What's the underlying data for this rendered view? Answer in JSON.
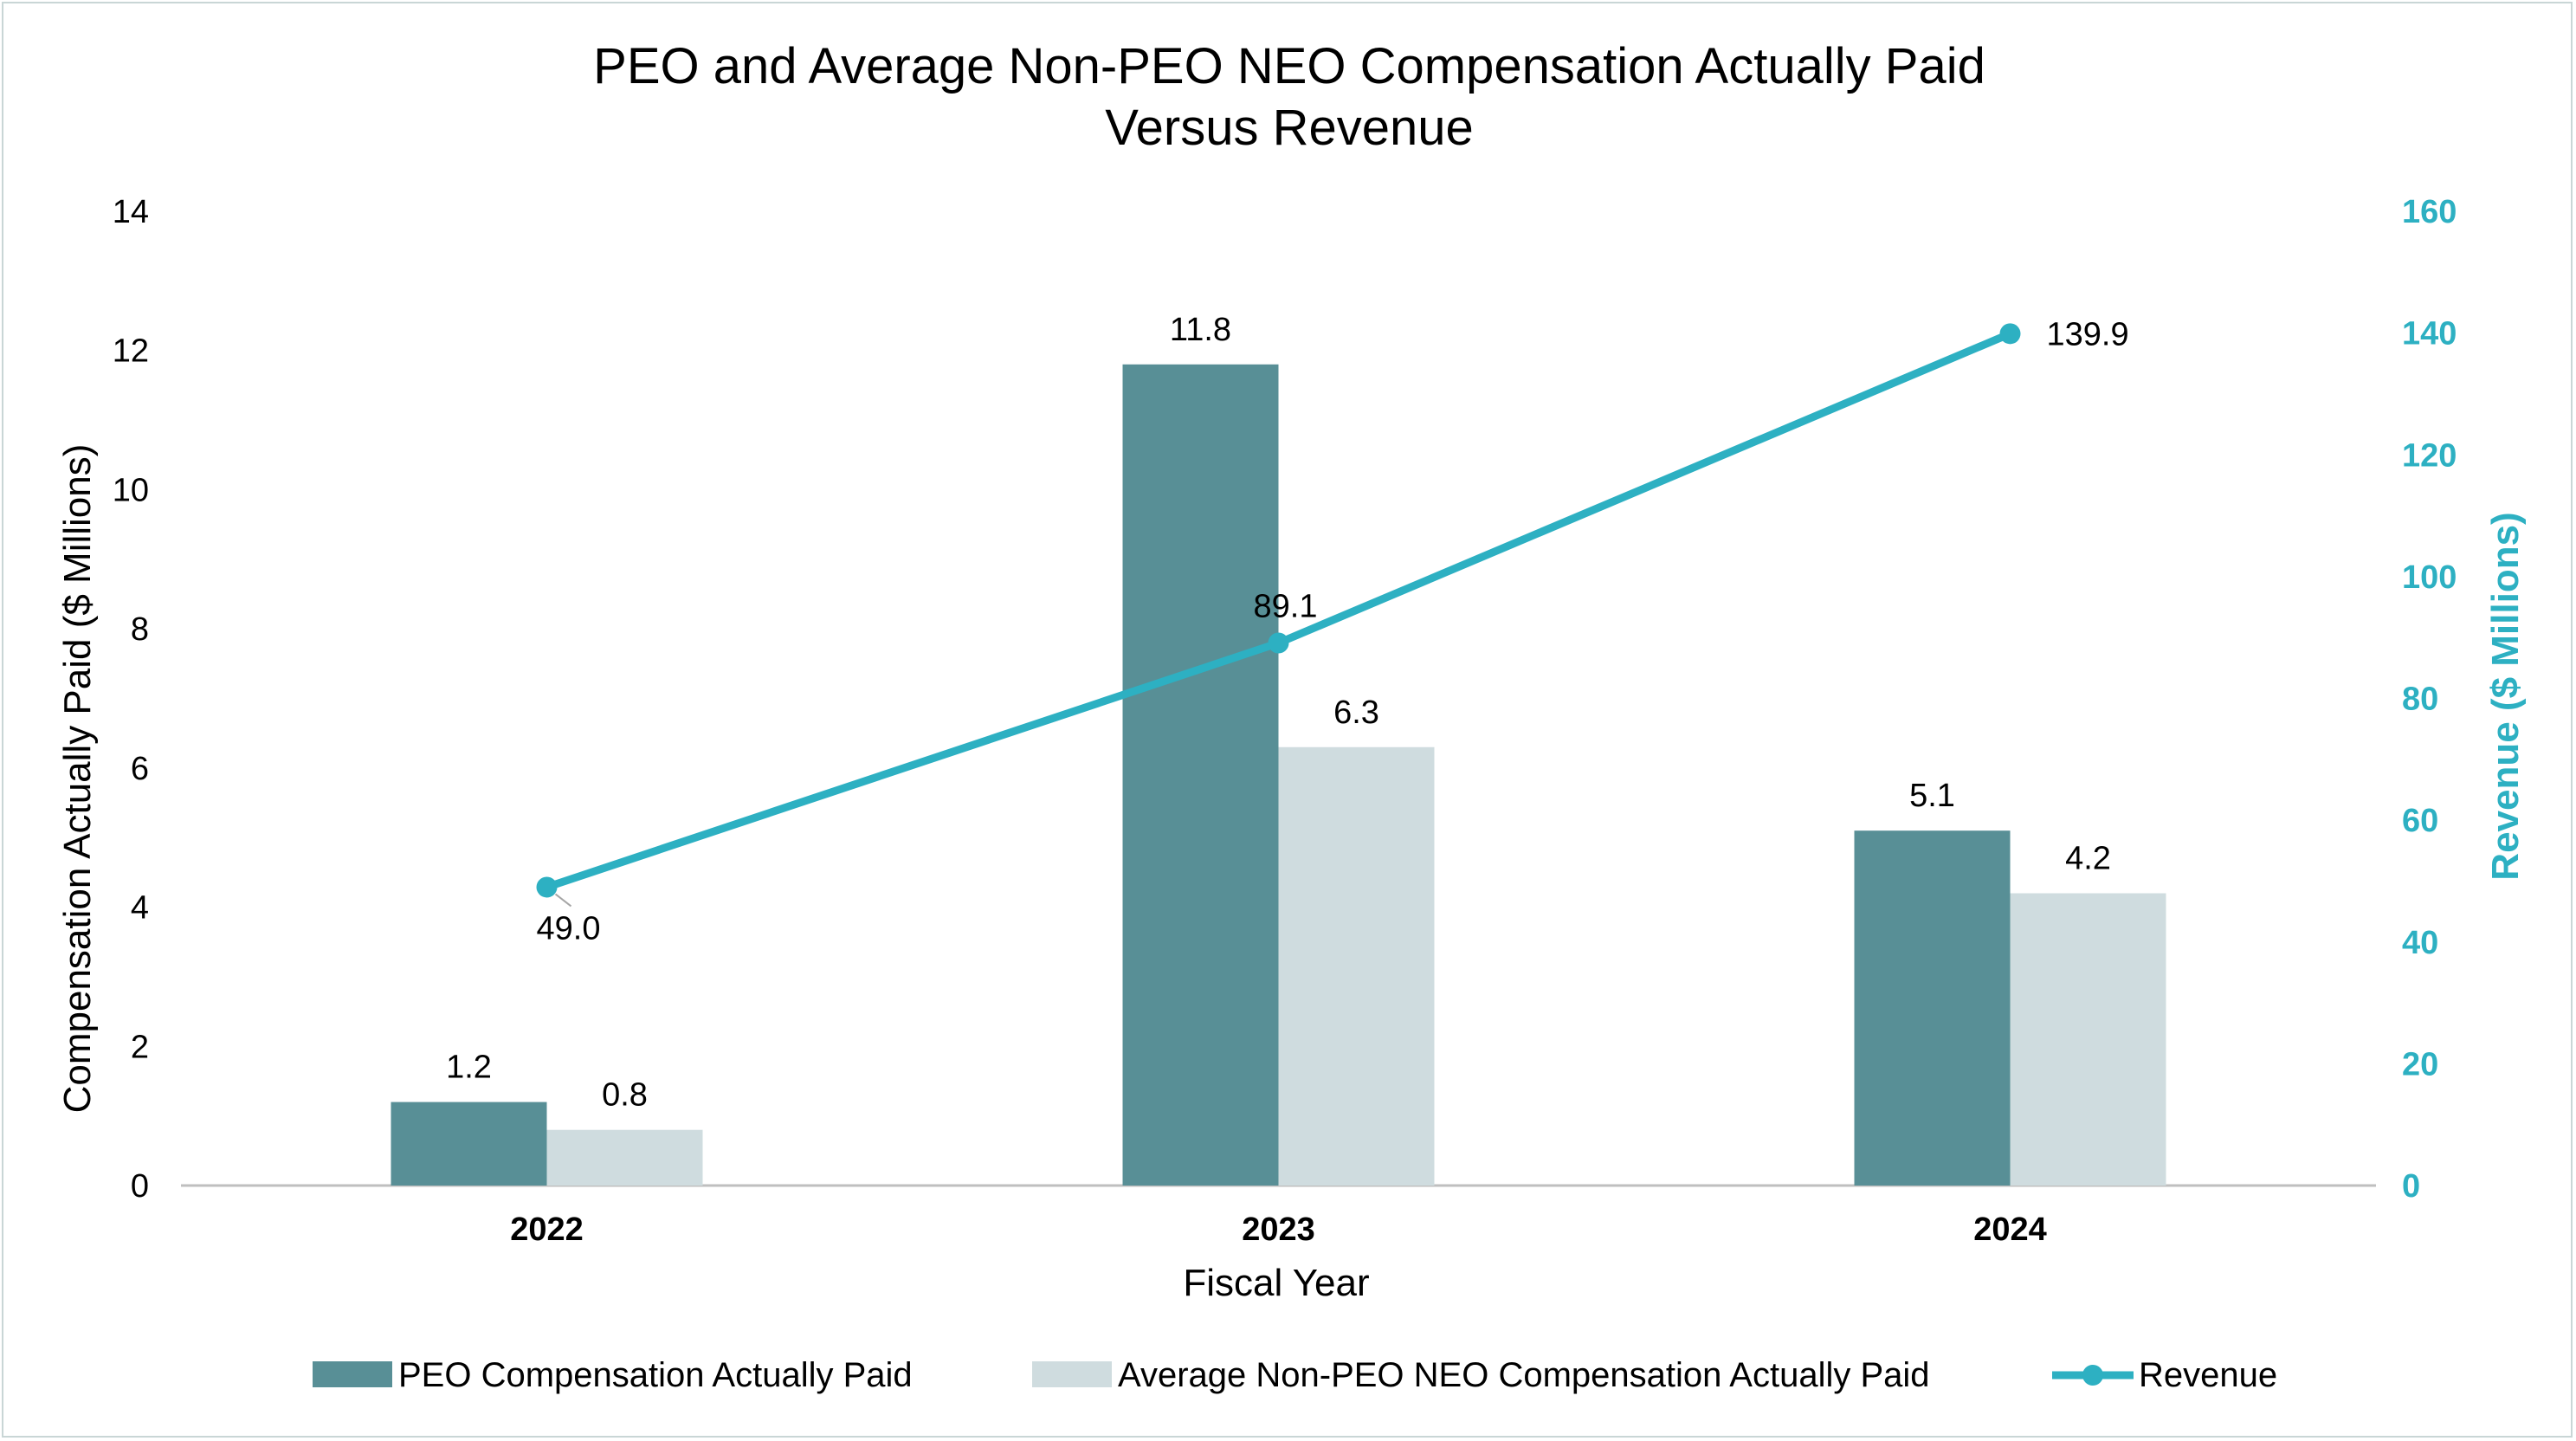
{
  "colors": {
    "peo": "#588f96",
    "neo": "#cfdcdf",
    "revenue": "#2db0c2",
    "axis_line": "#bfbfbf"
  },
  "chart_data": {
    "type": "bar",
    "title": "PEO and Average Non-PEO NEO Compensation Actually Paid",
    "subtitle": "Versus Revenue",
    "categories": [
      "2022",
      "2023",
      "2024"
    ],
    "xlabel": "Fiscal Year",
    "ylabel": "Compensation Actually Paid ($ Millions)",
    "ylabel_right": "Revenue ($ Millions)",
    "ylim": [
      0,
      14
    ],
    "yticks": [
      "0",
      "2",
      "4",
      "6",
      "8",
      "10",
      "12",
      "14"
    ],
    "ylim_right": [
      0,
      160
    ],
    "yticks_right": [
      "0",
      "20",
      "40",
      "60",
      "80",
      "100",
      "120",
      "140",
      "160"
    ],
    "grid": false,
    "legend_position": "bottom",
    "series": [
      {
        "name": "PEO Compensation Actually Paid",
        "type": "bar",
        "axis": "left",
        "values": [
          1.2,
          11.8,
          5.1
        ],
        "labels": [
          "1.2",
          "11.8",
          "5.1"
        ]
      },
      {
        "name": "Average Non-PEO NEO Compensation Actually Paid",
        "type": "bar",
        "axis": "left",
        "values": [
          0.8,
          6.3,
          4.2
        ],
        "labels": [
          "0.8",
          "6.3",
          "4.2"
        ]
      },
      {
        "name": "Revenue",
        "type": "line",
        "axis": "right",
        "values": [
          49.0,
          89.1,
          139.9
        ],
        "labels": [
          "49.0",
          "89.1",
          "139.9"
        ]
      }
    ]
  }
}
